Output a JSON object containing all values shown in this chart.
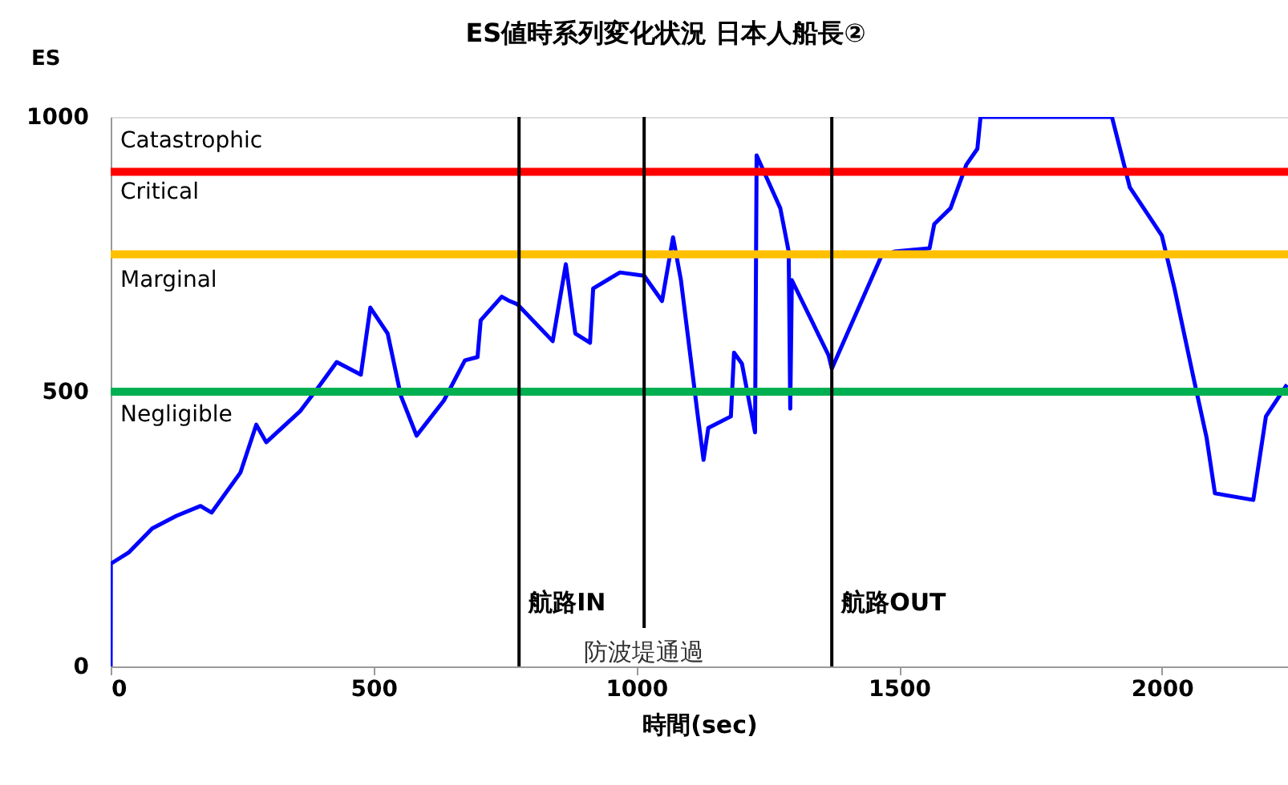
{
  "chart_data": {
    "type": "line",
    "title": "ES値時系列変化状況 日本人船長②",
    "xlabel": "時間(sec)",
    "ylabel": "ES",
    "x": [
      0,
      0.3,
      34,
      79,
      125,
      171,
      192,
      247,
      277,
      296,
      360,
      399,
      430,
      476,
      494,
      527,
      552,
      582,
      634,
      674,
      698,
      704,
      744,
      759,
      774,
      841,
      866,
      884,
      912,
      918,
      969,
      1015,
      1049,
      1070,
      1085,
      1107,
      1116,
      1128,
      1137,
      1180,
      1186,
      1201,
      1226,
      1229,
      1274,
      1290,
      1293,
      1296,
      1366,
      1372,
      1466,
      1491,
      1558,
      1567,
      1598,
      1628,
      1649,
      1655,
      1905,
      1939,
      2000,
      2024,
      2061,
      2085,
      2101,
      2174,
      2198,
      2238
    ],
    "series": [
      {
        "color": "#0000ff",
        "values": [
          0,
          187,
          207,
          251,
          274,
          292,
          280,
          353,
          440,
          408,
          464,
          513,
          554,
          531,
          653,
          606,
          493,
          420,
          484,
          557,
          563,
          630,
          673,
          665,
          659,
          592,
          732,
          606,
          589,
          688,
          717,
          711,
          665,
          781,
          703,
          534,
          464,
          376,
          434,
          455,
          571,
          551,
          426,
          930,
          834,
          755,
          469,
          703,
          566,
          542,
          746,
          755,
          761,
          805,
          834,
          913,
          942,
          1000,
          1000,
          872,
          784,
          688,
          522,
          417,
          315,
          303,
          455,
          513
        ]
      }
    ],
    "xlim": [
      0,
      2240
    ],
    "xticks": [
      0,
      500,
      1000,
      1500,
      2000
    ],
    "ylim": [
      0,
      1000
    ],
    "yticks": [
      0,
      500,
      1000
    ],
    "grid": false,
    "ref_lines": [
      {
        "axis": "y",
        "value": 900,
        "color": "#ff0000"
      },
      {
        "axis": "y",
        "value": 750,
        "color": "#ffc000"
      },
      {
        "axis": "y",
        "value": 500,
        "color": "#00b050"
      },
      {
        "axis": "x",
        "value": 777,
        "label": "航路IN",
        "color": "#000000"
      },
      {
        "axis": "x",
        "value": 1015,
        "label": "防波堤通過",
        "color": "#000000"
      },
      {
        "axis": "x",
        "value": 1372,
        "label": "航路OUT",
        "color": "#000000"
      }
    ],
    "annotations": [
      "Catastrophic",
      "Critical",
      "Marginal",
      "Negligible"
    ]
  }
}
